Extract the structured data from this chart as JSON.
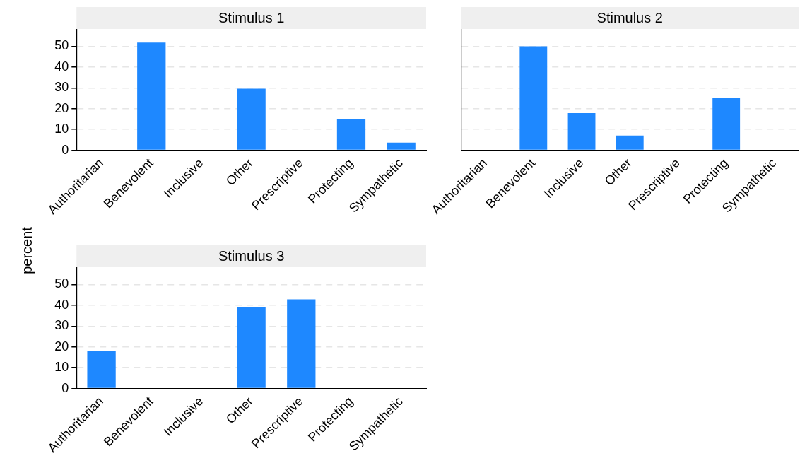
{
  "chart_data": [
    {
      "type": "bar",
      "title": "Stimulus 1",
      "ylabel": "percent",
      "categories": [
        "Authoritarian",
        "Benevolent",
        "Inclusive",
        "Other",
        "Prescriptive",
        "Protecting",
        "Sympathetic"
      ],
      "values": [
        0,
        51.8,
        0,
        29.6,
        0,
        14.8,
        3.7
      ],
      "color": "#1e88ff",
      "ylim": [
        0,
        58
      ],
      "yticks": [
        0,
        10,
        20,
        30,
        40,
        50
      ],
      "grid": "y",
      "legend": false
    },
    {
      "type": "bar",
      "title": "Stimulus 2",
      "categories": [
        "Authoritarian",
        "Benevolent",
        "Inclusive",
        "Other",
        "Prescriptive",
        "Protecting",
        "Sympathetic"
      ],
      "values": [
        0,
        50,
        17.9,
        7.1,
        0,
        25,
        0
      ],
      "color": "#1e88ff",
      "ylim": [
        0,
        58
      ],
      "yticks": [
        0,
        10,
        20,
        30,
        40,
        50
      ],
      "grid": "y",
      "legend": false,
      "tick_labels": "x"
    },
    {
      "type": "bar",
      "title": "Stimulus 3",
      "categories": [
        "Authoritarian",
        "Benevolent",
        "Inclusive",
        "Other",
        "Prescriptive",
        "Protecting",
        "Sympathetic"
      ],
      "values": [
        17.9,
        0,
        0,
        39.3,
        42.9,
        0,
        0
      ],
      "color": "#1e88ff",
      "ylim": [
        0,
        58
      ],
      "yticks": [
        0,
        10,
        20,
        30,
        40,
        50
      ],
      "grid": "y",
      "legend": false
    }
  ]
}
